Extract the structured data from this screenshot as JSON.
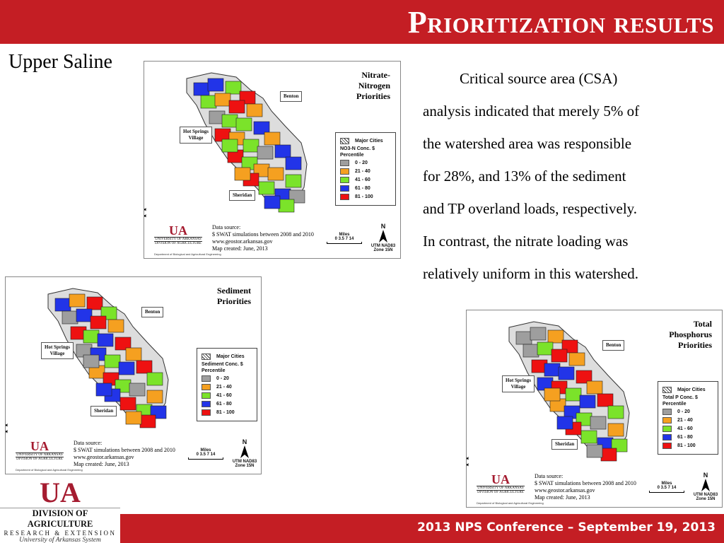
{
  "header": {
    "title": "Prioritization results"
  },
  "subtitle": "Upper Saline",
  "body_text": "Critical source area (CSA) analysis indicated that merely 5% of the watershed area was responsible for 28%, and 13% of the sediment and TP overland loads, respectively. In contrast, the nitrate loading was relatively uniform in this watershed.",
  "body_lines": [
    "Critical source area (CSA)",
    "analysis indicated that merely 5% of",
    "the watershed area was responsible",
    "for 28%, and 13% of the sediment",
    "and TP overland loads, respectively.",
    "In contrast, the nitrate loading was",
    "relatively uniform in this watershed."
  ],
  "colors": {
    "accent_red": "#c41e24",
    "p0_20": "#9e9e9e",
    "p21_40": "#f5a020",
    "p41_60": "#7be32a",
    "p61_80": "#2234e8",
    "p81_100": "#ee1111"
  },
  "maps": {
    "nitrate": {
      "vertical_label": "Upper Saline River Watershed",
      "title_lines": [
        "Nitrate-",
        "Nitrogen",
        "Priorities"
      ],
      "legend_major_cities": "Major Cities",
      "legend_conc": "NO3-N Conc. $",
      "legend_percentile": "Percentile",
      "classes": [
        "0 - 20",
        "21 - 40",
        "41 - 60",
        "61 - 80",
        "81 - 100"
      ],
      "callout_benton": "Benton",
      "callout_hs": [
        "Hot Springs",
        "Village"
      ],
      "callout_sheridan": "Sheridan",
      "data_source": [
        "Data source:",
        "$ SWAT simulations between 2008 and 2010",
        "www.geostor.arkansas.gov",
        "Map created: June, 2013"
      ],
      "logo_mark": "UA",
      "logo_l1": "UNIVERSITY OF ARKANSAS",
      "logo_l2": "DIVISION OF AGRICULTURE",
      "dept": "Department of Biological and Agricultural Engineering",
      "scale_title": "Miles",
      "scale_ticks": "0  3.5  7      14",
      "north": "N",
      "utm": [
        "UTM NAD83",
        "Zone 15N"
      ]
    },
    "sediment": {
      "vertical_label": "Upper Saline River Watershed",
      "title_lines": [
        "Sediment",
        "Priorities"
      ],
      "legend_major_cities": "Major Cities",
      "legend_conc": "Sediment Conc. $",
      "legend_percentile": "Percentile",
      "classes": [
        "0 - 20",
        "21 - 40",
        "41 - 60",
        "61 - 80",
        "81 - 100"
      ],
      "callout_benton": "Benton",
      "callout_hs": [
        "Hot Springs",
        "Village"
      ],
      "callout_sheridan": "Sheridan",
      "data_source": [
        "Data source:",
        "$ SWAT simulations between 2008 and 2010",
        "www.geostor.arkansas.gov",
        "Map created: June, 2013"
      ],
      "logo_mark": "UA",
      "logo_l1": "UNIVERSITY OF ARKANSAS",
      "logo_l2": "DIVISION OF AGRICULTURE",
      "dept": "Department of Biological and Agricultural Engineering",
      "scale_title": "Miles",
      "scale_ticks": "0  3.5  7      14",
      "north": "N",
      "utm": [
        "UTM NAD83",
        "Zone 15N"
      ]
    },
    "phosphorus": {
      "vertical_label": "Upper Saline River Watershed",
      "title_lines": [
        "Total",
        "Phosphorus",
        "Priorities"
      ],
      "legend_major_cities": "Major Cities",
      "legend_conc": "Total P Conc. $",
      "legend_percentile": "Percentile",
      "classes": [
        "0 - 20",
        "21 - 40",
        "41 - 60",
        "61 - 80",
        "81 - 100"
      ],
      "callout_benton": "Benton",
      "callout_hs": [
        "Hot Springs",
        "Village"
      ],
      "callout_sheridan": "Sheridan",
      "data_source": [
        "Data source:",
        "$ SWAT simulations between 2008 and 2010",
        "www.geostor.arkansas.gov",
        "Map created: June, 2013"
      ],
      "logo_mark": "UA",
      "logo_l1": "UNIVERSITY OF ARKANSAS",
      "logo_l2": "DIVISION OF AGRICULTURE",
      "dept": "Department of Biological and Agricultural Engineering",
      "scale_title": "Miles",
      "scale_ticks": "0  3.5  7      14",
      "north": "N",
      "utm": [
        "UTM NAD83",
        "Zone 15N"
      ]
    }
  },
  "brand": {
    "mark": "UA",
    "line1": "DIVISION OF AGRICULTURE",
    "line2": "RESEARCH & EXTENSION",
    "line3": "University of Arkansas System"
  },
  "footer": {
    "text": "2013 NPS Conference – September 19, 2013"
  }
}
